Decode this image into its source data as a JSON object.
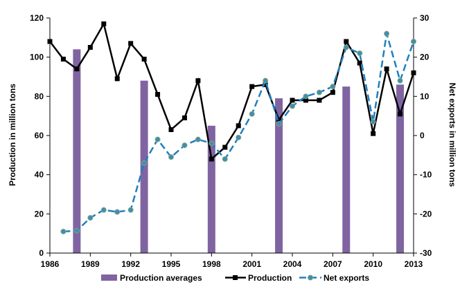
{
  "chart_data": {
    "type": "line",
    "x_ticks": [
      "1986",
      "1989",
      "1992",
      "1995",
      "1998",
      "2001",
      "2004",
      "2007",
      "2010",
      "2013"
    ],
    "y_left_ticks": [
      "0",
      "20",
      "40",
      "60",
      "80",
      "100",
      "120"
    ],
    "y_right_ticks": [
      "-30",
      "-20",
      "-10",
      "0",
      "10",
      "20",
      "30"
    ],
    "ylabel_left": "Production in million tons",
    "ylabel_right": "Net exports in million tons",
    "xlim": [
      1986,
      2013
    ],
    "ylim_left": [
      0,
      120
    ],
    "ylim_right": [
      -30,
      30
    ],
    "legend_position": "bottom",
    "colors": {
      "bars": "#8064a2",
      "production": "#000000",
      "net_exports": "#1f7fbf",
      "net_exports_marker": "#3a8fb5"
    },
    "series": [
      {
        "name": "Production averages",
        "kind": "bar",
        "axis": "left",
        "x": [
          1988,
          1993,
          1998,
          2003,
          2008,
          2012
        ],
        "values": [
          104,
          88,
          65,
          79,
          85,
          86
        ]
      },
      {
        "name": "Production",
        "kind": "line",
        "axis": "left",
        "x": [
          1986,
          1987,
          1988,
          1989,
          1990,
          1991,
          1992,
          1993,
          1994,
          1995,
          1996,
          1997,
          1998,
          1999,
          2000,
          2001,
          2002,
          2003,
          2004,
          2005,
          2006,
          2007,
          2008,
          2009,
          2010,
          2011,
          2012,
          2013
        ],
        "values": [
          108,
          99,
          94,
          105,
          117,
          89,
          107,
          99,
          81,
          63,
          69,
          88,
          48,
          54,
          65,
          85,
          86,
          68,
          78,
          78,
          78,
          82,
          108,
          97,
          61,
          94,
          71,
          92
        ]
      },
      {
        "name": "Net exports",
        "kind": "line",
        "axis": "right",
        "x": [
          1987,
          1988,
          1989,
          1990,
          1991,
          1992,
          1993,
          1994,
          1995,
          1996,
          1997,
          1998,
          1999,
          2000,
          2001,
          2002,
          2003,
          2004,
          2005,
          2006,
          2007,
          2008,
          2009,
          2010,
          2011,
          2012,
          2013
        ],
        "values": [
          -24.5,
          -24.3,
          -21,
          -19,
          -19.5,
          -19,
          -7,
          -1,
          -5.5,
          -2.5,
          -1,
          -2,
          -6,
          -0.5,
          5.5,
          14,
          3,
          7.5,
          10,
          11,
          12.5,
          22.5,
          21,
          3.5,
          26,
          14,
          24
        ]
      }
    ]
  }
}
